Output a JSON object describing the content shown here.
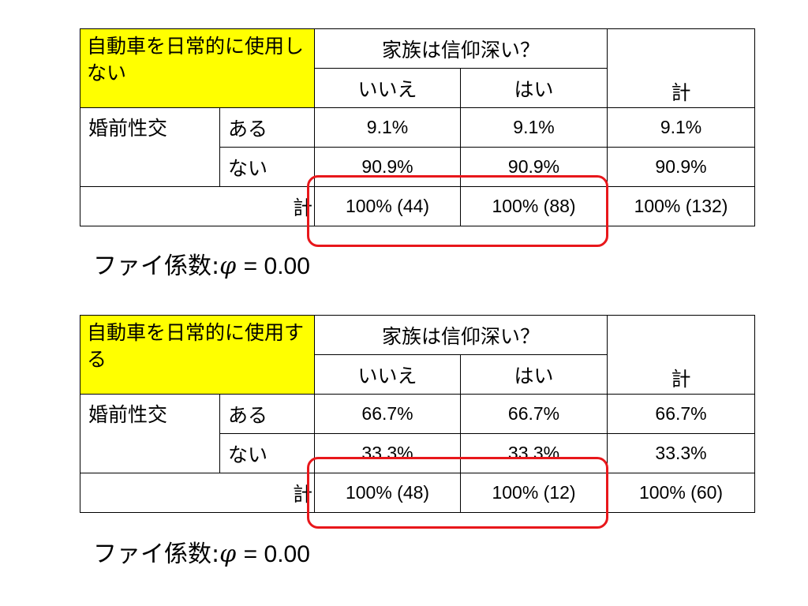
{
  "colors": {
    "corner_bg": "#ffff00",
    "highlight": "#e8171b",
    "border": "#000000"
  },
  "tables": [
    {
      "corner_label": "自動車を日常的に使用しない",
      "col_group_header": "家族は信仰深い？",
      "col_headers": [
        "いいえ",
        "はい"
      ],
      "total_header": "計",
      "row_group_header": "婚前性交",
      "rows": [
        {
          "label": "ある",
          "values": [
            "9.1%",
            "9.1%",
            "9.1%"
          ]
        },
        {
          "label": "ない",
          "values": [
            "90.9%",
            "90.9%",
            "90.9%"
          ]
        }
      ],
      "total_row_label": "計",
      "total_row_values": [
        "100% (44)",
        "100% (88)",
        "100% (132)"
      ],
      "phi_label": "ファイ係数",
      "phi_colon": ":",
      "phi_symbol": "φ",
      "phi_value": "= 0.00"
    },
    {
      "corner_label": "自動車を日常的に使用する",
      "col_group_header": "家族は信仰深い？",
      "col_headers": [
        "いいえ",
        "はい"
      ],
      "total_header": "計",
      "row_group_header": "婚前性交",
      "rows": [
        {
          "label": "ある",
          "values": [
            "66.7%",
            "66.7%",
            "66.7%"
          ]
        },
        {
          "label": "ない",
          "values": [
            "33.3%",
            "33.3%",
            "33.3%"
          ]
        }
      ],
      "total_row_label": "計",
      "total_row_values": [
        "100% (48)",
        "100% (12)",
        "100% (60)"
      ],
      "phi_label": "ファイ係数",
      "phi_colon": ":",
      "phi_symbol": "φ",
      "phi_value": "= 0.00"
    }
  ]
}
